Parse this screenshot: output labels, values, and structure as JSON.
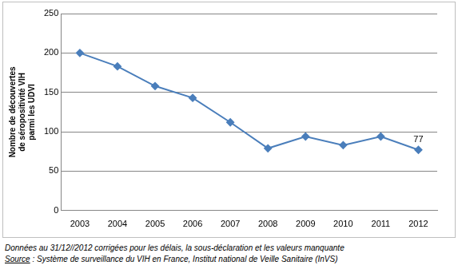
{
  "chart_data": {
    "type": "line",
    "categories": [
      "2003",
      "2004",
      "2005",
      "2006",
      "2007",
      "2008",
      "2009",
      "2010",
      "2011",
      "2012"
    ],
    "values": [
      200,
      183,
      158,
      143,
      112,
      79,
      94,
      83,
      94,
      77
    ],
    "color": "#4a7ebb",
    "marker": "diamond",
    "ylim": [
      0,
      250
    ],
    "yticks": [
      0,
      50,
      100,
      150,
      200,
      250
    ],
    "grid": true,
    "y_label": [
      "Nombre de découvertes",
      "de séropositivité VIH",
      "parmi les UDVI"
    ],
    "annotations": [
      {
        "category": "2012",
        "value": 77,
        "label": "77"
      }
    ]
  },
  "notes": [
    "Données au 31/12//2012 corrigées pour les délais, la sous-déclaration  et les valeurs manquante"
  ],
  "source": {
    "label": "Source",
    "text": " : Système de surveillance du VIH en France, Institut national de Veille Sanitaire (InVS)"
  }
}
